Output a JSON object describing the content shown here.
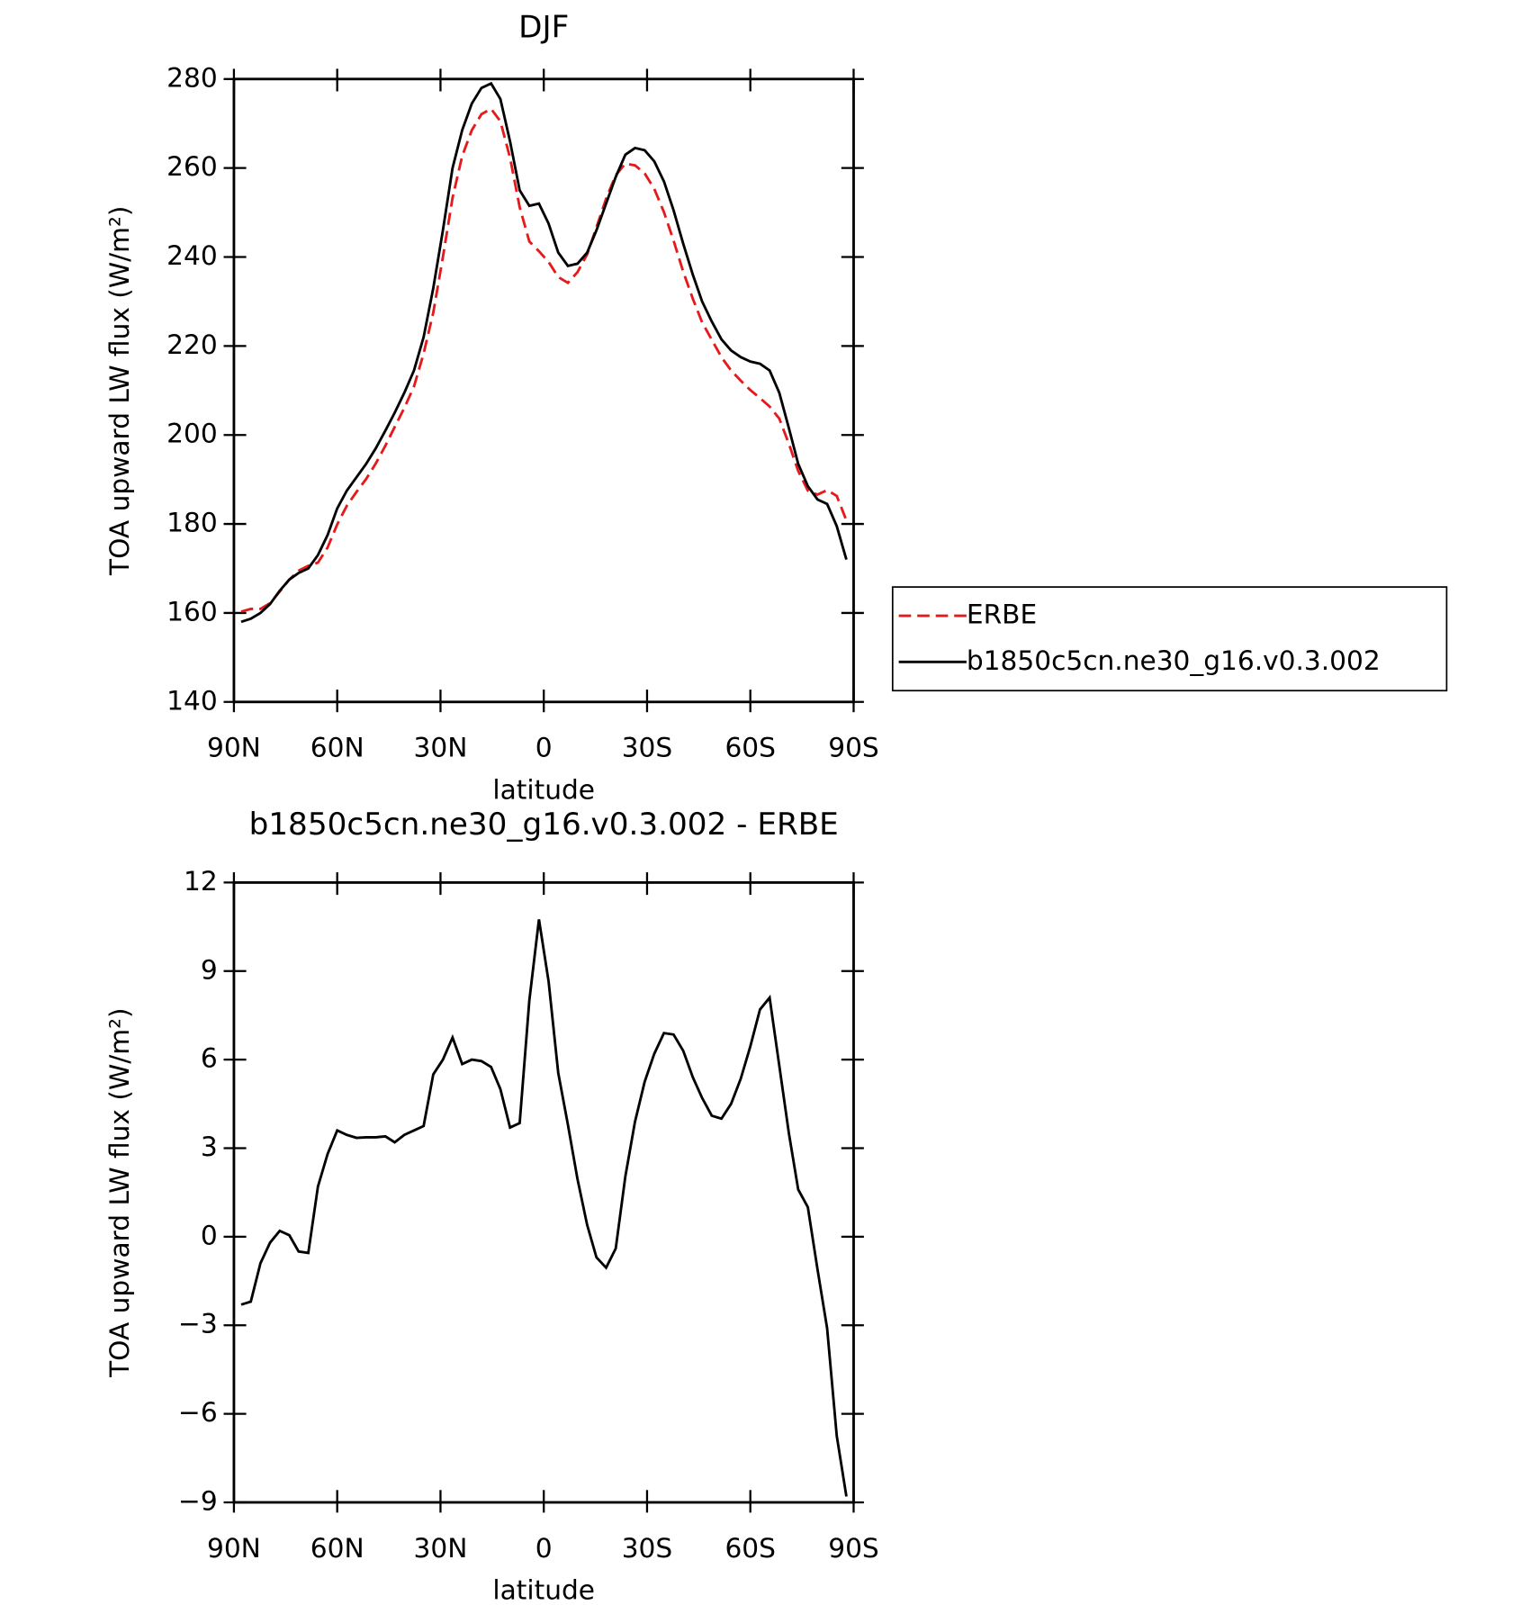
{
  "chart_data": [
    {
      "type": "line",
      "title": "DJF",
      "xlabel": "latitude",
      "ylabel": "TOA upward LW flux (W/m²)",
      "x": [
        87.9,
        85.1,
        82.3,
        79.5,
        76.7,
        73.9,
        71.2,
        68.4,
        65.6,
        62.8,
        60.0,
        57.2,
        54.4,
        51.6,
        48.8,
        46.0,
        43.3,
        40.5,
        37.7,
        34.9,
        32.1,
        29.3,
        26.5,
        23.7,
        20.9,
        18.1,
        15.3,
        12.6,
        9.8,
        7.0,
        4.2,
        1.4,
        -1.4,
        -4.2,
        -7.0,
        -9.8,
        -12.6,
        -15.3,
        -18.1,
        -20.9,
        -23.7,
        -26.5,
        -29.3,
        -32.1,
        -34.9,
        -37.7,
        -40.5,
        -43.3,
        -46.0,
        -48.8,
        -51.6,
        -54.4,
        -57.2,
        -60.0,
        -62.8,
        -65.6,
        -68.4,
        -71.2,
        -73.9,
        -76.7,
        -79.5,
        -82.3,
        -85.1,
        -87.9
      ],
      "series": [
        {
          "name": "ERBE",
          "color": "#e41a1c",
          "dash": true,
          "values": [
            160.3,
            160.9,
            160.9,
            162.2,
            164.8,
            167.5,
            169.5,
            170.6,
            171.3,
            174.7,
            179.9,
            184.1,
            187.2,
            190.1,
            193.6,
            197.6,
            201.8,
            206.1,
            210.9,
            218.3,
            227.5,
            240.0,
            253.3,
            262.7,
            268.5,
            272.1,
            273.3,
            270.5,
            262.3,
            251.2,
            243.5,
            241.3,
            238.9,
            235.5,
            234.2,
            236.6,
            240.6,
            246.7,
            253.1,
            258.4,
            261.0,
            260.6,
            258.8,
            255.3,
            250.1,
            243.7,
            236.7,
            230.6,
            225.3,
            221.4,
            217.5,
            214.5,
            212.2,
            210.1,
            208.3,
            206.4,
            203.7,
            198.0,
            191.9,
            187.5,
            186.6,
            187.6,
            186.3,
            180.8
          ]
        },
        {
          "name": "b1850c5cn.ne30_g16.v0.3.002",
          "color": "#000000",
          "dash": false,
          "values": [
            158.0,
            158.7,
            160.0,
            162.0,
            165.0,
            167.5,
            169.0,
            170.0,
            173.0,
            177.5,
            183.5,
            187.5,
            190.5,
            193.5,
            197.0,
            201.0,
            205.0,
            209.5,
            214.5,
            222.0,
            233.0,
            246.0,
            260.0,
            268.5,
            274.5,
            278.0,
            279.0,
            275.5,
            266.0,
            255.0,
            251.5,
            252.0,
            247.5,
            241.0,
            238.0,
            238.5,
            241.0,
            246.0,
            252.0,
            258.0,
            263.0,
            264.5,
            264.0,
            261.5,
            257.0,
            250.5,
            243.0,
            236.0,
            230.0,
            225.5,
            221.5,
            219.0,
            217.5,
            216.5,
            216.0,
            214.5,
            209.5,
            201.5,
            193.5,
            188.5,
            185.5,
            184.5,
            179.5,
            172.0
          ]
        }
      ],
      "xlim": [
        90,
        -90
      ],
      "xticks": [
        {
          "value": 90,
          "label": "90N"
        },
        {
          "value": 60,
          "label": "60N"
        },
        {
          "value": 30,
          "label": "30N"
        },
        0,
        {
          "value": -30,
          "label": "30S"
        },
        {
          "value": -60,
          "label": "60S"
        },
        {
          "value": -90,
          "label": "90S"
        }
      ],
      "ylim": [
        140,
        280
      ],
      "yticks": [
        140,
        160,
        180,
        200,
        220,
        240,
        260,
        280
      ],
      "legend": "outside-right"
    },
    {
      "type": "line",
      "title": "b1850c5cn.ne30_g16.v0.3.002 - ERBE",
      "xlabel": "latitude",
      "ylabel": "TOA upward LW flux (W/m²)",
      "x": [
        87.9,
        85.1,
        82.3,
        79.5,
        76.7,
        73.9,
        71.2,
        68.4,
        65.6,
        62.8,
        60.0,
        57.2,
        54.4,
        51.6,
        48.8,
        46.0,
        43.3,
        40.5,
        37.7,
        34.9,
        32.1,
        29.3,
        26.5,
        23.7,
        20.9,
        18.1,
        15.3,
        12.6,
        9.8,
        7.0,
        4.2,
        1.4,
        -1.4,
        -4.2,
        -7.0,
        -9.8,
        -12.6,
        -15.3,
        -18.1,
        -20.9,
        -23.7,
        -26.5,
        -29.3,
        -32.1,
        -34.9,
        -37.7,
        -40.5,
        -43.3,
        -46.0,
        -48.8,
        -51.6,
        -54.4,
        -57.2,
        -60.0,
        -62.8,
        -65.6,
        -68.4,
        -71.2,
        -73.9,
        -76.7,
        -79.5,
        -82.3,
        -85.1,
        -87.9
      ],
      "color": "#000000",
      "values": [
        -2.3,
        -2.2,
        -0.9,
        -0.2,
        0.2,
        0.05,
        -0.5,
        -0.55,
        1.7,
        2.8,
        3.6,
        3.45,
        3.35,
        3.37,
        3.37,
        3.4,
        3.2,
        3.45,
        3.6,
        3.75,
        5.5,
        6.0,
        6.75,
        5.85,
        6.0,
        5.95,
        5.75,
        5.0,
        3.7,
        3.85,
        8.0,
        10.75,
        8.65,
        5.55,
        3.8,
        1.95,
        0.4,
        -0.7,
        -1.05,
        -0.4,
        2.05,
        3.9,
        5.25,
        6.2,
        6.9,
        6.85,
        6.3,
        5.4,
        4.7,
        4.1,
        4.0,
        4.5,
        5.35,
        6.45,
        7.7,
        8.1,
        5.8,
        3.5,
        1.6,
        1.0,
        -1.1,
        -3.1,
        -6.75,
        -8.8
      ],
      "xlim": [
        90,
        -90
      ],
      "xticks": [
        {
          "value": 90,
          "label": "90N"
        },
        {
          "value": 60,
          "label": "60N"
        },
        {
          "value": 30,
          "label": "30N"
        },
        0,
        {
          "value": -30,
          "label": "30S"
        },
        {
          "value": -60,
          "label": "60S"
        },
        {
          "value": -90,
          "label": "90S"
        }
      ],
      "ylim": [
        -9,
        12
      ],
      "yticks": [
        {
          "value": -9,
          "label": "−9"
        },
        {
          "value": -6,
          "label": "−6"
        },
        {
          "value": -3,
          "label": "−3"
        },
        0,
        3,
        6,
        9,
        12
      ]
    }
  ]
}
